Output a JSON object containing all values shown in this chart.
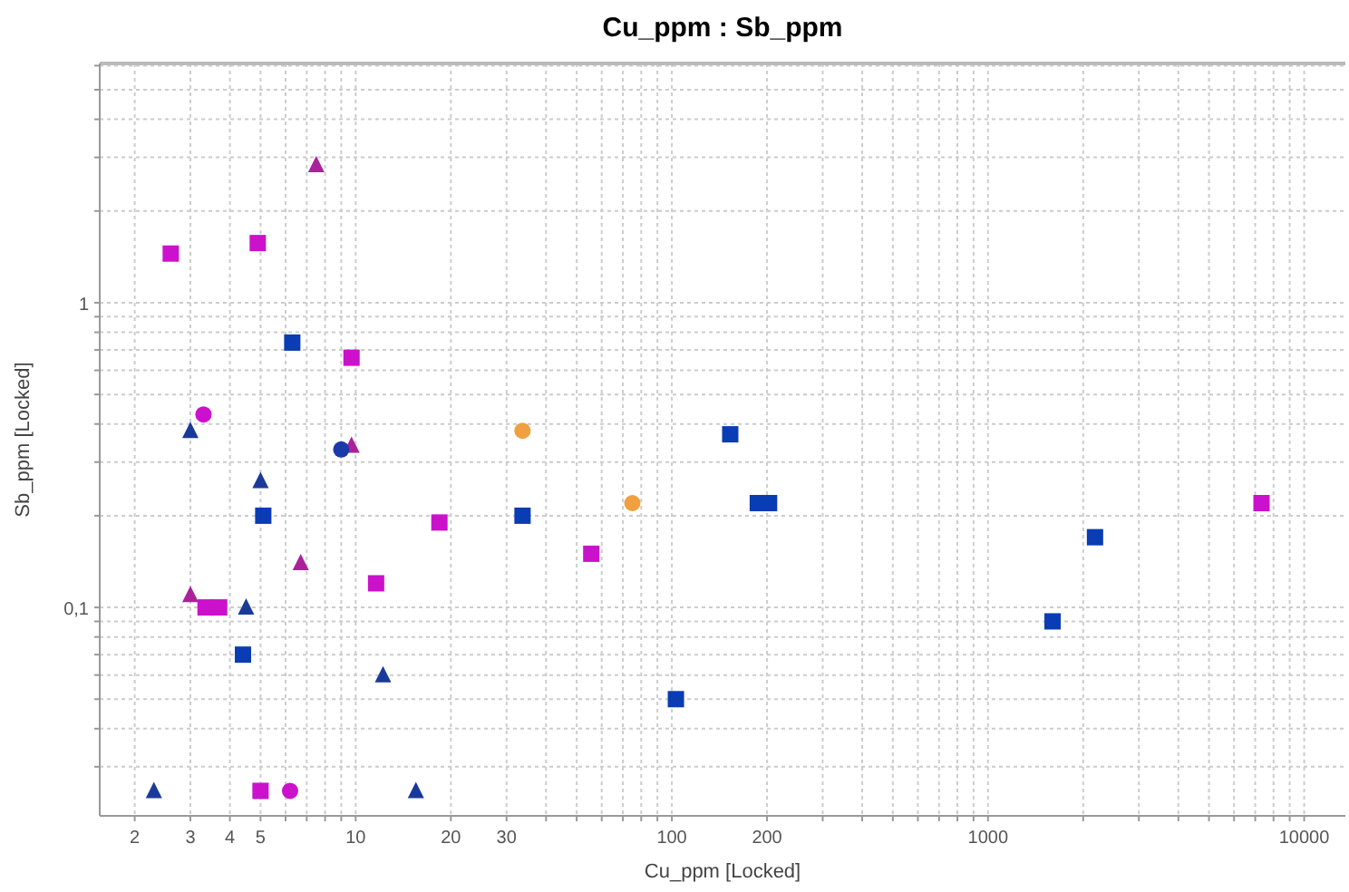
{
  "chart_data": {
    "type": "scatter",
    "title": "Cu_ppm : Sb_ppm",
    "xlabel": "Cu_ppm [Locked]",
    "ylabel": "Sb_ppm [Locked]",
    "log": "xy",
    "grid": true,
    "xlim": [
      1.55,
      13500
    ],
    "ylim": [
      0.0207,
      6.1
    ],
    "xticks": [
      2,
      3,
      4,
      5,
      {
        "value": 6,
        "label": null
      },
      {
        "value": 7,
        "label": null
      },
      {
        "value": 8,
        "label": null
      },
      {
        "value": 9,
        "label": null
      },
      10,
      20,
      30,
      {
        "value": 40,
        "label": null
      },
      {
        "value": 50,
        "label": null
      },
      {
        "value": 60,
        "label": null
      },
      {
        "value": 70,
        "label": null
      },
      {
        "value": 80,
        "label": null
      },
      {
        "value": 90,
        "label": null
      },
      100,
      200,
      {
        "value": 300,
        "label": null
      },
      {
        "value": 400,
        "label": null
      },
      {
        "value": 500,
        "label": null
      },
      {
        "value": 600,
        "label": null
      },
      {
        "value": 700,
        "label": null
      },
      {
        "value": 800,
        "label": null
      },
      {
        "value": 900,
        "label": null
      },
      1000,
      {
        "value": 2000,
        "label": null
      },
      {
        "value": 3000,
        "label": null
      },
      {
        "value": 4000,
        "label": null
      },
      {
        "value": 5000,
        "label": null
      },
      {
        "value": 6000,
        "label": null
      },
      {
        "value": 7000,
        "label": null
      },
      {
        "value": 8000,
        "label": null
      },
      {
        "value": 9000,
        "label": null
      },
      10000
    ],
    "yticks": [
      {
        "value": 0.03,
        "label": null
      },
      {
        "value": 0.04,
        "label": null
      },
      {
        "value": 0.05,
        "label": null
      },
      {
        "value": 0.06,
        "label": null
      },
      {
        "value": 0.07,
        "label": null
      },
      {
        "value": 0.08,
        "label": null
      },
      {
        "value": 0.09,
        "label": null
      },
      {
        "value": 0.1,
        "label": "0,1"
      },
      {
        "value": 0.2,
        "label": null
      },
      {
        "value": 0.3,
        "label": null
      },
      {
        "value": 0.4,
        "label": null
      },
      {
        "value": 0.5,
        "label": null
      },
      {
        "value": 0.6,
        "label": null
      },
      {
        "value": 0.7,
        "label": null
      },
      {
        "value": 0.8,
        "label": null
      },
      {
        "value": 0.9,
        "label": null
      },
      1,
      {
        "value": 2,
        "label": null
      },
      {
        "value": 3,
        "label": null
      },
      {
        "value": 4,
        "label": null
      },
      {
        "value": 5,
        "label": null
      },
      {
        "value": 6,
        "label": null
      }
    ],
    "series": [
      {
        "color": "#0a3cb4",
        "marker": "square",
        "x": [
          6.3,
          5.1,
          4.4,
          33.7,
          103,
          153,
          187,
          203,
          1600,
          2180
        ],
        "values": [
          0.74,
          0.2,
          0.07,
          0.2,
          0.05,
          0.37,
          0.22,
          0.22,
          0.09,
          0.17
        ]
      },
      {
        "color": "#cc11cc",
        "marker": "square",
        "x": [
          2.6,
          4.9,
          9.7,
          3.35,
          3.7,
          11.6,
          18.4,
          55.6,
          5,
          7330
        ],
        "values": [
          1.45,
          1.57,
          0.66,
          0.1,
          0.1,
          0.12,
          0.19,
          0.15,
          0.025,
          0.22
        ]
      },
      {
        "color": "#1a3a9a",
        "marker": "triangle",
        "x": [
          3.0,
          5.0,
          4.5,
          12.2,
          2.3,
          15.5
        ],
        "values": [
          0.38,
          0.26,
          0.1,
          0.06,
          0.025,
          0.025
        ]
      },
      {
        "color": "#aa2299",
        "marker": "triangle",
        "x": [
          7.5,
          3.0,
          6.7,
          9.7
        ],
        "values": [
          2.83,
          0.11,
          0.14,
          0.34
        ]
      },
      {
        "color": "#cc11cc",
        "marker": "circle",
        "x": [
          3.3,
          6.2
        ],
        "values": [
          0.43,
          0.025
        ]
      },
      {
        "color": "#1a3aaa",
        "marker": "circle",
        "x": [
          9.0
        ],
        "values": [
          0.33
        ]
      },
      {
        "color": "#f0a040",
        "marker": "circle",
        "x": [
          33.7,
          75
        ],
        "values": [
          0.38,
          0.22
        ]
      }
    ]
  }
}
